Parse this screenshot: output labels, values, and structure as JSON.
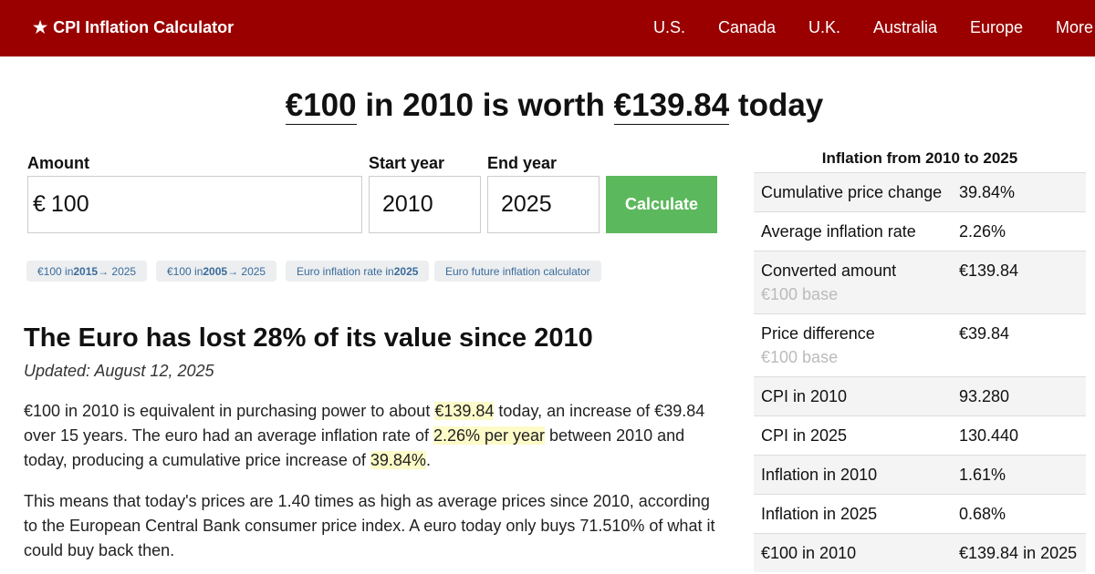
{
  "header": {
    "brand_star": "★",
    "brand": "CPI Inflation Calculator",
    "nav": [
      "U.S.",
      "Canada",
      "U.K.",
      "Australia",
      "Europe",
      "More"
    ]
  },
  "headline": {
    "amount": "€100",
    "middle": " in 2010 is worth ",
    "value": "€139.84",
    "end": " today"
  },
  "form": {
    "amount_label": "Amount",
    "amount_currency": "€",
    "amount_value": "100",
    "start_label": "Start year",
    "start_value": "2010",
    "end_label": "End year",
    "end_value": "2025",
    "calculate_label": "Calculate"
  },
  "chips": [
    {
      "pre": "€100 in ",
      "bold": "2015",
      "post": " → 2025"
    },
    {
      "pre": "€100 in ",
      "bold": "2005",
      "post": " → 2025"
    },
    {
      "pre": "Euro inflation rate in ",
      "bold": "2025",
      "post": ""
    },
    {
      "pre": "Euro future inflation calculator",
      "bold": "",
      "post": ""
    }
  ],
  "article": {
    "title": "The Euro has lost 28% of its value since 2010",
    "updated": "Updated: August 12, 2025",
    "p1": {
      "a": "€100 in 2010 is equivalent in purchasing power to about ",
      "hl1": "€139.84",
      "b": " today, an increase of €39.84 over 15 years. The euro had an average inflation rate of ",
      "hl2": "2.26% per year",
      "c": " between 2010 and today, producing a cumulative price increase of ",
      "hl3": "39.84%",
      "d": "."
    },
    "p2": "This means that today's prices are 1.40 times as high as average prices since 2010, according to the European Central Bank consumer price index. A euro today only buys 71.510% of what it could buy back then."
  },
  "sidebar": {
    "title": "Inflation from 2010 to 2025",
    "rows": [
      {
        "label": "Cumulative price change",
        "sub": "",
        "value": "39.84%"
      },
      {
        "label": "Average inflation rate",
        "sub": "",
        "value": "2.26%"
      },
      {
        "label": "Converted amount",
        "sub": "€100 base",
        "value": "€139.84"
      },
      {
        "label": "Price difference",
        "sub": "€100 base",
        "value": "€39.84"
      },
      {
        "label": "CPI in 2010",
        "sub": "",
        "value": "93.280"
      },
      {
        "label": "CPI in 2025",
        "sub": "",
        "value": "130.440"
      },
      {
        "label": "Inflation in 2010",
        "sub": "",
        "value": "1.61%"
      },
      {
        "label": "Inflation in 2025",
        "sub": "",
        "value": "0.68%"
      },
      {
        "label": "€100 in 2010",
        "sub": "",
        "value": "€139.84 in 2025"
      }
    ]
  },
  "colors": {
    "header_bg": "#9a0000",
    "button_bg": "#5cb85c",
    "highlight": "#fdfbc8",
    "chip_text": "#3a6b9a"
  }
}
